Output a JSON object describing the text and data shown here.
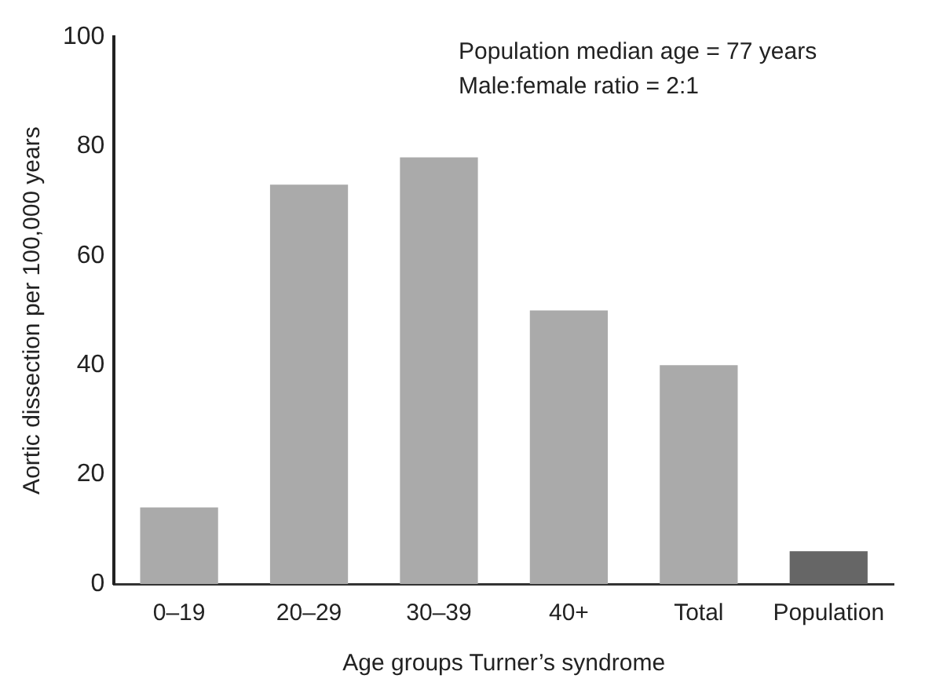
{
  "chart_data": {
    "type": "bar",
    "xlabel": "Age groups Turner’s syndrome",
    "ylabel": "Aortic dissection per 100,000 years",
    "categories": [
      "0–19",
      "20–29",
      "30–39",
      "40+",
      "Total",
      "Population"
    ],
    "values": [
      14,
      73,
      78,
      50,
      40,
      6
    ],
    "colors": [
      "#aaaaaa",
      "#aaaaaa",
      "#aaaaaa",
      "#aaaaaa",
      "#aaaaaa",
      "#666666"
    ],
    "ylim": [
      0,
      100
    ],
    "yticks": [
      0,
      20,
      40,
      60,
      80,
      100
    ],
    "grid": false,
    "legend": false,
    "annotations": [
      "Population median age = 77 years",
      "Male:female ratio = 2:1"
    ]
  }
}
